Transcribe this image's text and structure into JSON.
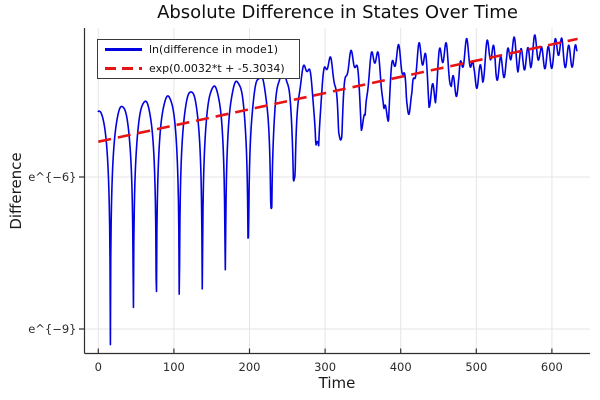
{
  "title": "Absolute Difference in States Over Time",
  "colors": {
    "series_blue": "#0202e0",
    "fit_red": "#e61414",
    "grid": "#e5e5e5",
    "axis": "#2f2f2f",
    "tick_text": "#2b2b2b",
    "background": "#ffffff"
  },
  "legend": {
    "items": [
      {
        "label": "ln(difference in mode1)",
        "style": "solid",
        "color": "#0202e0"
      },
      {
        "label": "exp(0.0032*t + -5.3034)",
        "style": "dashed",
        "color": "#e61414"
      }
    ]
  },
  "axes": {
    "x": {
      "label": "Time",
      "ticks": [
        "0",
        "100",
        "200",
        "300",
        "400",
        "500",
        "600"
      ],
      "tick_values": [
        0,
        100,
        200,
        300,
        400,
        500,
        600
      ]
    },
    "y": {
      "label": "Difference",
      "scale": "ln",
      "ticks": [
        {
          "value": -6,
          "label": "e^{−6}"
        },
        {
          "value": -9,
          "label": "e^{−9}"
        }
      ]
    }
  },
  "chart_data": {
    "type": "line",
    "title": "Absolute Difference in States Over Time",
    "xlabel": "Time",
    "ylabel": "Difference",
    "x_range": [
      0,
      633
    ],
    "sample_step": 0.5,
    "y_scale": "log_e",
    "ylim_ln": [
      -9.54,
      -3.06
    ],
    "xlim": [
      -18,
      655
    ],
    "grid": true,
    "legend_position": "top-left",
    "series": [
      {
        "name": "ln(difference in mode1)",
        "color": "#0202e0",
        "style": "solid",
        "model": "oscillating_abs_difference_log",
        "params": {
          "fit_slope": 0.0032,
          "fit_intercept": -5.3034,
          "excess": {
            "base": 0.6,
            "decay_start": 340,
            "decay_rate": 0.00233
          },
          "arch_period": 60.8,
          "arch_phase": 1.49,
          "floor_depth": {
            "base_early": 3.95,
            "spike_extra": 2.2,
            "spike_tau": 14,
            "seg1_start": 150,
            "seg1_rate": 0.01664,
            "seg2_start": 290,
            "seg2_value": 1.62,
            "seg2_rate": 0.00505,
            "min_depth": 0.22,
            "ratio_cap": 0.78
          },
          "ripple": {
            "period": 9.0,
            "phase": 0.7,
            "gain": 0.55,
            "cap": 0.22
          }
        },
        "key_points_ln": [
          {
            "t": 0,
            "ln": -4.6
          },
          {
            "t": 16,
            "ln": -9.36,
            "note": "deepest dip"
          },
          {
            "t": 104,
            "ln": -8.07,
            "note": "dip"
          },
          {
            "t": 290,
            "ln": -5.4,
            "note": "dip"
          },
          {
            "t": 330,
            "ln": -3.76,
            "note": "hump peak"
          },
          {
            "t": 607,
            "ln": -3.25,
            "note": "late peak near fit line"
          }
        ]
      },
      {
        "name": "exp(0.0032*t + -5.3034)",
        "color": "#e61414",
        "style": "dashed",
        "model": "linear_in_log",
        "params": {
          "slope": 0.0032,
          "intercept": -5.3034
        },
        "x_range": [
          0,
          634
        ]
      }
    ]
  }
}
